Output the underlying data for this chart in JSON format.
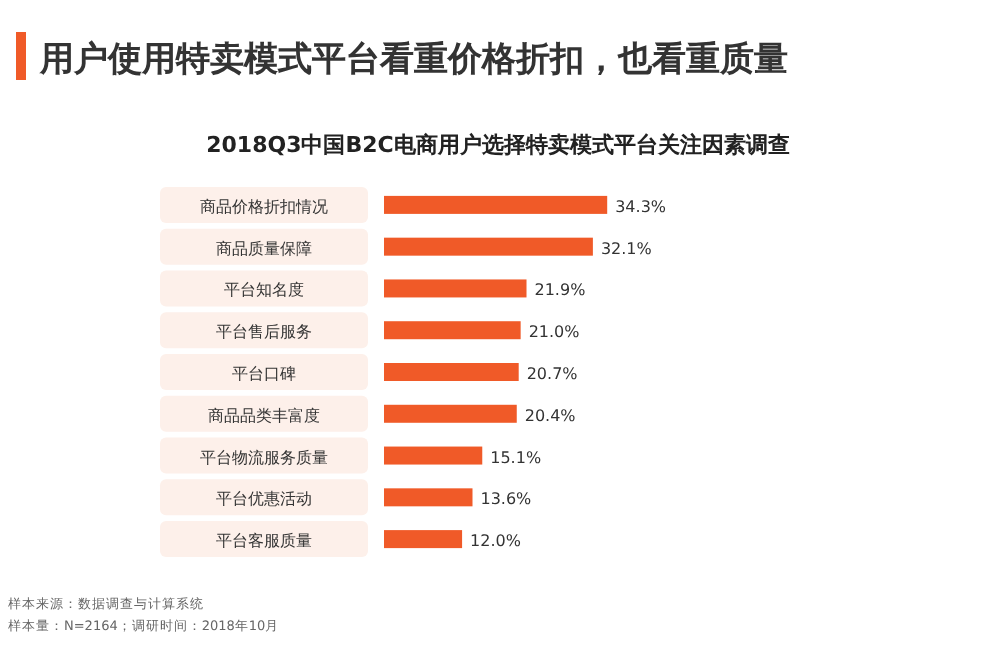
{
  "chart_data": {
    "type": "bar",
    "orientation": "horizontal",
    "title": "用户使用特卖模式平台看重价格折扣，也看重质量",
    "subtitle": "2018Q3中国B2C电商用户选择特卖模式平台关注因素调查",
    "categories": [
      "商品价格折扣情况",
      "商品质量保障",
      "平台知名度",
      "平台售后服务",
      "平台口碑",
      "商品品类丰富度",
      "平台物流服务质量",
      "平台优惠活动",
      "平台客服质量"
    ],
    "values": [
      34.3,
      32.1,
      21.9,
      21.0,
      20.7,
      20.4,
      15.1,
      13.6,
      12.0
    ],
    "value_labels": [
      "34.3%",
      "32.1%",
      "21.9%",
      "21.0%",
      "20.7%",
      "20.4%",
      "15.1%",
      "13.6%",
      "12.0%"
    ],
    "color": "#f05a28",
    "annotations": [
      "样本来源：数据调查与计算系统",
      "样本量：N=2164；调研时间：2018年10月"
    ]
  }
}
